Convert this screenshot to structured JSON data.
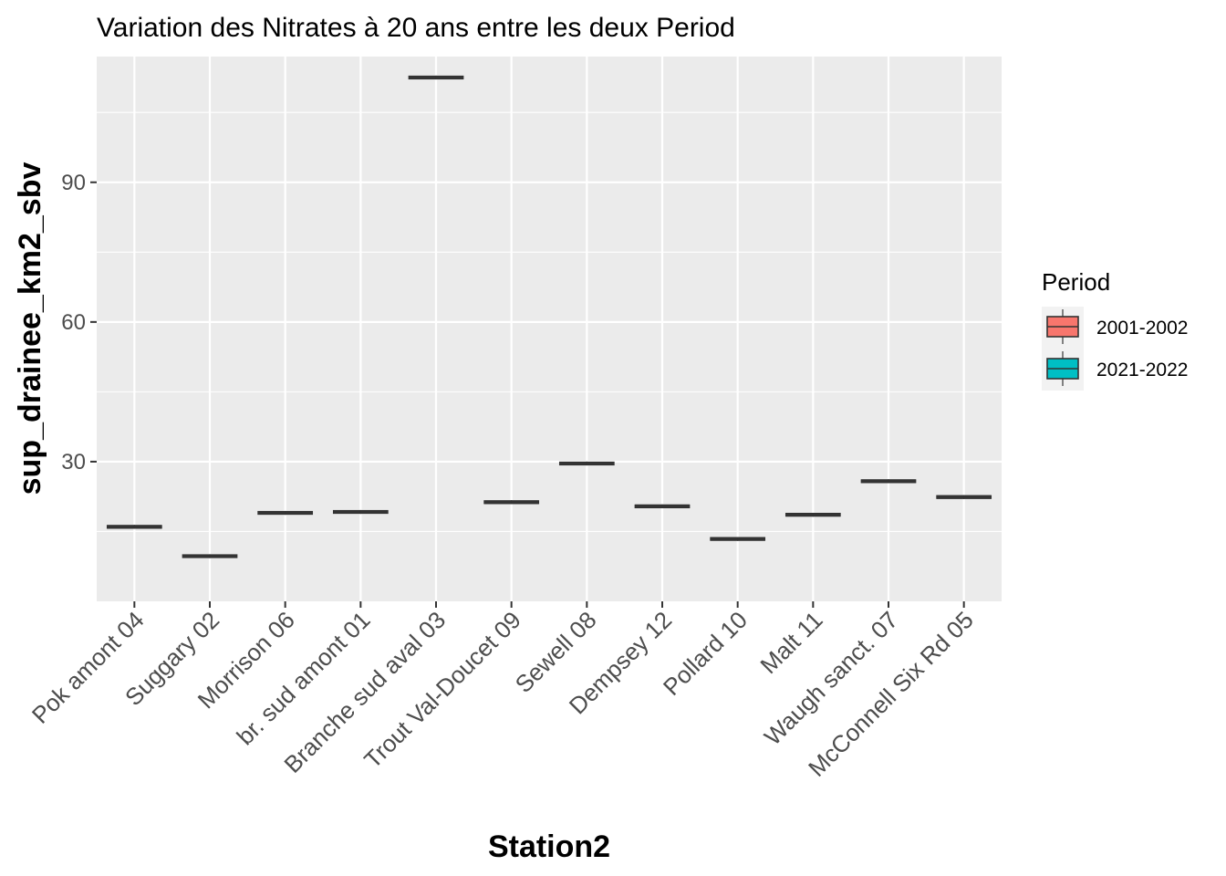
{
  "chart_data": {
    "type": "box",
    "title": "Variation  des Nitrates à 20 ans entre les deux Period",
    "xlabel": "Station2",
    "ylabel": "sup_drainee_km2_sbv",
    "ylim": [
      0,
      117
    ],
    "yticks": [
      30,
      60,
      90
    ],
    "grid": true,
    "legend_position": "right",
    "categories": [
      "Pok amont 04",
      "Suggary 02",
      "Morrison 06",
      "br. sud amont 01",
      "Branche sud aval 03",
      "Trout Val-Doucet 09",
      "Sewell 08",
      "Dempsey 12",
      "Pollard 10",
      "Malt 11",
      "Waugh sanct. 07",
      "McConnell Six Rd 05"
    ],
    "legend": {
      "title": "Period",
      "entries": [
        {
          "name": "2001-2002",
          "color": "#F8766D"
        },
        {
          "name": "2021-2022",
          "color": "#00BFC4"
        }
      ]
    },
    "series": [
      {
        "name": "2001-2002",
        "values": [
          16.0,
          9.7,
          19.0,
          19.2,
          112.5,
          21.3,
          29.6,
          20.4,
          13.4,
          18.6,
          25.8,
          22.4
        ]
      },
      {
        "name": "2021-2022",
        "values": [
          16.0,
          9.7,
          19.0,
          19.2,
          112.5,
          21.3,
          29.6,
          20.4,
          13.4,
          18.6,
          25.8,
          22.4
        ]
      }
    ]
  }
}
